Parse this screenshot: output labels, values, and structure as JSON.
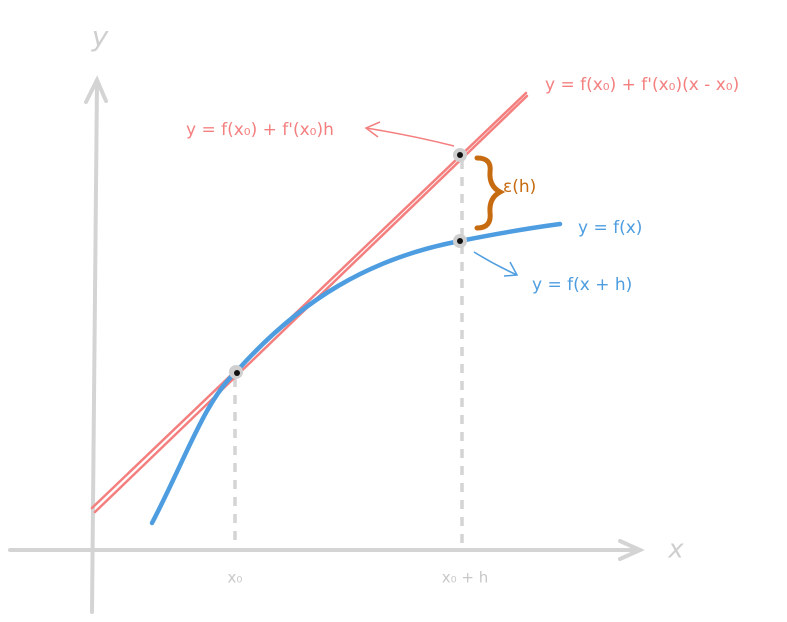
{
  "axes": {
    "y_label": "y",
    "x_label": "x"
  },
  "ticks": [
    "x₀",
    "x₀ + h"
  ],
  "labels": {
    "tangent_line": "y = f(x₀) + f'(x₀)(x - x₀)",
    "tangent_point": "y = f(x₀) + f'(x₀)h",
    "error": "ε(h)",
    "curve": "y = f(x)",
    "curve_point": "y = f(x + h)"
  }
}
